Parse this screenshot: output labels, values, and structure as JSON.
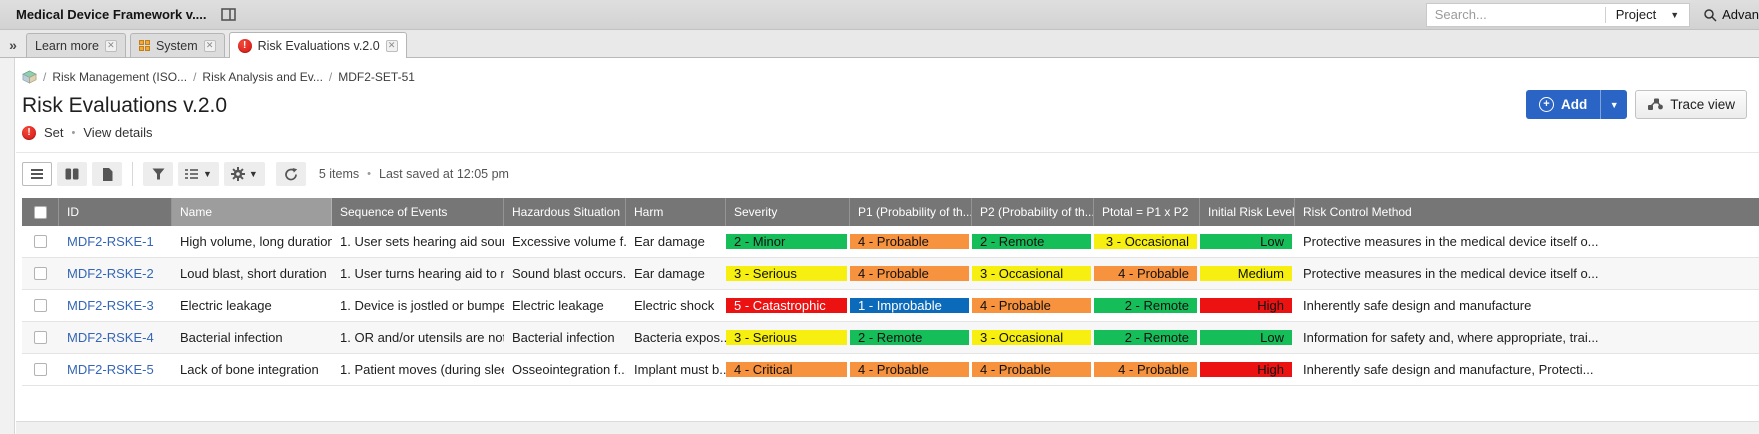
{
  "topbar": {
    "app_title": "Medical Device Framework v....",
    "search_placeholder": "Search...",
    "project_label": "Project",
    "advanced_label": "Advan"
  },
  "tabs": [
    {
      "label": "Learn more",
      "icon": "none",
      "active": false
    },
    {
      "label": "System",
      "icon": "grid",
      "active": false
    },
    {
      "label": "Risk Evaluations v.2.0",
      "icon": "alert",
      "active": true
    }
  ],
  "breadcrumb": {
    "separator": "/",
    "items": [
      "Risk Management (ISO...",
      "Risk Analysis and Ev...",
      "MDF2-SET-51"
    ]
  },
  "page": {
    "title": "Risk Evaluations v.2.0",
    "type_label": "Set",
    "bullet": "•",
    "view_details_label": "View details"
  },
  "actions": {
    "add_label": "Add",
    "add_plus": "+",
    "trace_label": "Trace view"
  },
  "toolbar": {
    "items_count": "5 items",
    "bullet": "•",
    "last_saved": "Last saved at 12:05 pm"
  },
  "colors": {
    "green": "#16be5a",
    "yellow": "#f6ef0f",
    "orange": "#f7923e",
    "red": "#ed1212",
    "blue": "#0b6ab9",
    "header": "#767676",
    "header_sorted": "#9d9d9d",
    "link": "#3566b5",
    "add_button": "#2a64c4"
  },
  "table": {
    "columns": [
      {
        "key": "select",
        "label": ""
      },
      {
        "key": "id",
        "label": "ID"
      },
      {
        "key": "name",
        "label": "Name"
      },
      {
        "key": "sequence",
        "label": "Sequence of Events"
      },
      {
        "key": "hazard",
        "label": "Hazardous Situation"
      },
      {
        "key": "harm",
        "label": "Harm"
      },
      {
        "key": "severity",
        "label": "Severity"
      },
      {
        "key": "p1",
        "label": "P1 (Probability of th..."
      },
      {
        "key": "p2",
        "label": "P2 (Probability of th..."
      },
      {
        "key": "ptotal",
        "label": "Ptotal = P1 x P2"
      },
      {
        "key": "initial",
        "label": "Initial Risk Level"
      },
      {
        "key": "control",
        "label": "Risk Control Method"
      }
    ],
    "rows": [
      {
        "id": "MDF2-RSKE-1",
        "name": "High volume, long duration",
        "sequence": "1. User sets hearing aid sound t",
        "hazard": "Excessive volume f...",
        "harm": "Ear damage",
        "severity": {
          "text": "2 - Minor",
          "color": "green"
        },
        "p1": {
          "text": "4 - Probable",
          "color": "orange"
        },
        "p2": {
          "text": "2 - Remote",
          "color": "green"
        },
        "ptotal": {
          "text": "3 - Occasional",
          "color": "yellow"
        },
        "initial": {
          "text": "Low",
          "color": "green"
        },
        "control": "Protective measures in the medical device itself o..."
      },
      {
        "id": "MDF2-RSKE-2",
        "name": "Loud blast, short duration",
        "sequence": "1. User turns hearing aid to max",
        "hazard": "Sound blast occurs...",
        "harm": "Ear damage",
        "severity": {
          "text": "3 - Serious",
          "color": "yellow"
        },
        "p1": {
          "text": "4 - Probable",
          "color": "orange"
        },
        "p2": {
          "text": "3 - Occasional",
          "color": "yellow"
        },
        "ptotal": {
          "text": "4 - Probable",
          "color": "orange"
        },
        "initial": {
          "text": "Medium",
          "color": "yellow"
        },
        "control": "Protective measures in the medical device itself o..."
      },
      {
        "id": "MDF2-RSKE-3",
        "name": "Electric leakage",
        "sequence": "1. Device is jostled or bumped",
        "hazard": "Electric leakage",
        "harm": "Electric shock",
        "severity": {
          "text": "5 - Catastrophic",
          "color": "red",
          "fg": "#ffffff"
        },
        "p1": {
          "text": "1 - Improbable",
          "color": "blue",
          "fg": "#ffffff"
        },
        "p2": {
          "text": "4 - Probable",
          "color": "orange"
        },
        "ptotal": {
          "text": "2 - Remote",
          "color": "green"
        },
        "initial": {
          "text": "High",
          "color": "red"
        },
        "control": "Inherently safe design and manufacture"
      },
      {
        "id": "MDF2-RSKE-4",
        "name": "Bacterial infection",
        "sequence": "1. OR and/or utensils are not pro",
        "hazard": "Bacterial infection",
        "harm": "Bacteria expos...",
        "severity": {
          "text": "3 - Serious",
          "color": "yellow"
        },
        "p1": {
          "text": "2 - Remote",
          "color": "green"
        },
        "p2": {
          "text": "3 - Occasional",
          "color": "yellow"
        },
        "ptotal": {
          "text": "2 - Remote",
          "color": "green"
        },
        "initial": {
          "text": "Low",
          "color": "green"
        },
        "control": "Information for safety and, where appropriate, trai..."
      },
      {
        "id": "MDF2-RSKE-5",
        "name": "Lack of bone integration",
        "sequence": "1. Patient moves (during sleep, e",
        "hazard": "Osseointegration f...",
        "harm": "Implant must b...",
        "severity": {
          "text": "4 - Critical",
          "color": "orange"
        },
        "p1": {
          "text": "4 - Probable",
          "color": "orange"
        },
        "p2": {
          "text": "4 - Probable",
          "color": "orange"
        },
        "ptotal": {
          "text": "4 - Probable",
          "color": "orange"
        },
        "initial": {
          "text": "High",
          "color": "red"
        },
        "control": "Inherently safe design and manufacture,  Protecti..."
      }
    ]
  }
}
